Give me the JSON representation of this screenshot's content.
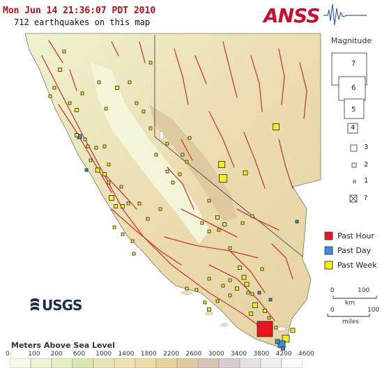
{
  "header": {
    "timestamp": "Mon Jun 14 21:36:07 PDT 2010",
    "count_text": "712 earthquakes on this map"
  },
  "brand": {
    "logo_text": "ANSS"
  },
  "logo": {
    "text": "USGS"
  },
  "legend": {
    "magnitude_title": "Magnitude",
    "magnitudes": [
      "7",
      "6",
      "5",
      "4",
      "3",
      "2",
      "1",
      "?"
    ],
    "time_title_items": [
      {
        "label": "Past Hour",
        "color": "#e8141e"
      },
      {
        "label": "Past Day",
        "color": "#3b8fe0"
      },
      {
        "label": "Past Week",
        "color": "#f4ef1a"
      }
    ]
  },
  "scale": {
    "km_labels": [
      "0",
      "100"
    ],
    "km_unit": "km",
    "mi_labels": [
      "0",
      "100"
    ],
    "mi_unit": "miles"
  },
  "elevation": {
    "title": "Meters Above Sea Level",
    "ticks": [
      "0",
      "100",
      "200",
      "600",
      "1000",
      "1400",
      "1800",
      "2200",
      "2600",
      "3000",
      "3400",
      "3800",
      "4200",
      "4600"
    ],
    "colors": [
      "#f6fbe8",
      "#eef7d4",
      "#e4f0c2",
      "#d7e8b0",
      "#e8e6b8",
      "#efe1b0",
      "#eedca6",
      "#e9d29a",
      "#e0c8a0",
      "#d8c4b4",
      "#d6cdd0",
      "#e4e0e4",
      "#f1eff2",
      "#fbfafb"
    ]
  },
  "colors": {
    "fault": "#c93a3a",
    "water": "#ffffff",
    "border": "#555555",
    "past_hour": "#e8141e",
    "past_day": "#3b8fe0",
    "past_week": "#f4ef1a"
  }
}
